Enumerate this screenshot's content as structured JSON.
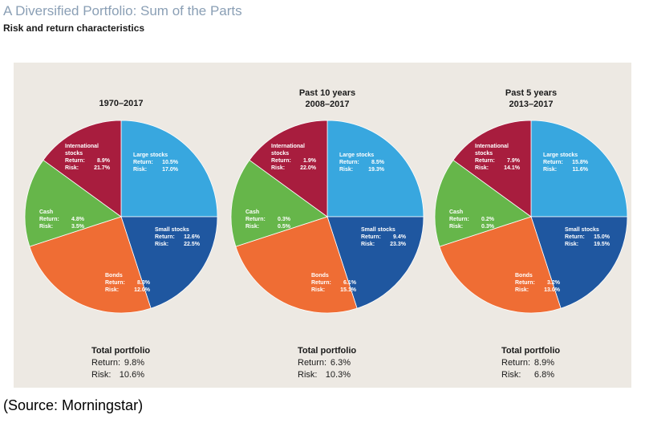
{
  "header": {
    "title": "A Diversified Portfolio: Sum of the Parts",
    "subtitle": "Risk and return characteristics"
  },
  "footer": {
    "source": "(Source: Morningstar)"
  },
  "colors": {
    "large_stocks": "#38a7df",
    "small_stocks": "#1f57a0",
    "bonds": "#ef6d34",
    "cash": "#66b64a",
    "international_stocks": "#a81d3e",
    "panel": "#ede9e3"
  },
  "chart_data": [
    {
      "type": "pie",
      "title_lines": [
        "1970–2017"
      ],
      "slices": [
        {
          "name_lines": [
            "Large stocks"
          ],
          "return": "10.5%",
          "risk": "17.0%",
          "share": 0.25,
          "color_key": "large_stocks"
        },
        {
          "name_lines": [
            "Small stocks"
          ],
          "return": "12.6%",
          "risk": "22.5%",
          "share": 0.2,
          "color_key": "small_stocks"
        },
        {
          "name_lines": [
            "Bonds"
          ],
          "return": "8.3%",
          "risk": "12.0%",
          "share": 0.25,
          "color_key": "bonds"
        },
        {
          "name_lines": [
            "Cash"
          ],
          "return": "4.8%",
          "risk": "3.5%",
          "share": 0.15,
          "color_key": "cash"
        },
        {
          "name_lines": [
            "International",
            "stocks"
          ],
          "return": "8.9%",
          "risk": "21.7%",
          "share": 0.15,
          "color_key": "international_stocks"
        }
      ],
      "total": {
        "label": "Total portfolio",
        "return": "9.8%",
        "risk": "10.6%"
      }
    },
    {
      "type": "pie",
      "title_lines": [
        "Past 10 years",
        "2008–2017"
      ],
      "slices": [
        {
          "name_lines": [
            "Large stocks"
          ],
          "return": "8.5%",
          "risk": "19.3%",
          "share": 0.25,
          "color_key": "large_stocks"
        },
        {
          "name_lines": [
            "Small stocks"
          ],
          "return": "9.4%",
          "risk": "23.3%",
          "share": 0.2,
          "color_key": "small_stocks"
        },
        {
          "name_lines": [
            "Bonds"
          ],
          "return": "6.1%",
          "risk": "15.1%",
          "share": 0.25,
          "color_key": "bonds"
        },
        {
          "name_lines": [
            "Cash"
          ],
          "return": "0.3%",
          "risk": "0.5%",
          "share": 0.15,
          "color_key": "cash"
        },
        {
          "name_lines": [
            "International",
            "stocks"
          ],
          "return": "1.9%",
          "risk": "22.0%",
          "share": 0.15,
          "color_key": "international_stocks"
        }
      ],
      "total": {
        "label": "Total portfolio",
        "return": "6.3%",
        "risk": "10.3%"
      }
    },
    {
      "type": "pie",
      "title_lines": [
        "Past 5 years",
        "2013–2017"
      ],
      "slices": [
        {
          "name_lines": [
            "Large stocks"
          ],
          "return": "15.8%",
          "risk": "11.6%",
          "share": 0.25,
          "color_key": "large_stocks"
        },
        {
          "name_lines": [
            "Small stocks"
          ],
          "return": "15.0%",
          "risk": "19.5%",
          "share": 0.2,
          "color_key": "small_stocks"
        },
        {
          "name_lines": [
            "Bonds"
          ],
          "return": "3.2%",
          "risk": "13.0%",
          "share": 0.25,
          "color_key": "bonds"
        },
        {
          "name_lines": [
            "Cash"
          ],
          "return": "0.2%",
          "risk": "0.3%",
          "share": 0.15,
          "color_key": "cash"
        },
        {
          "name_lines": [
            "International",
            "stocks"
          ],
          "return": "7.9%",
          "risk": "14.1%",
          "share": 0.15,
          "color_key": "international_stocks"
        }
      ],
      "total": {
        "label": "Total portfolio",
        "return": "8.9%",
        "risk": "6.8%"
      }
    }
  ]
}
